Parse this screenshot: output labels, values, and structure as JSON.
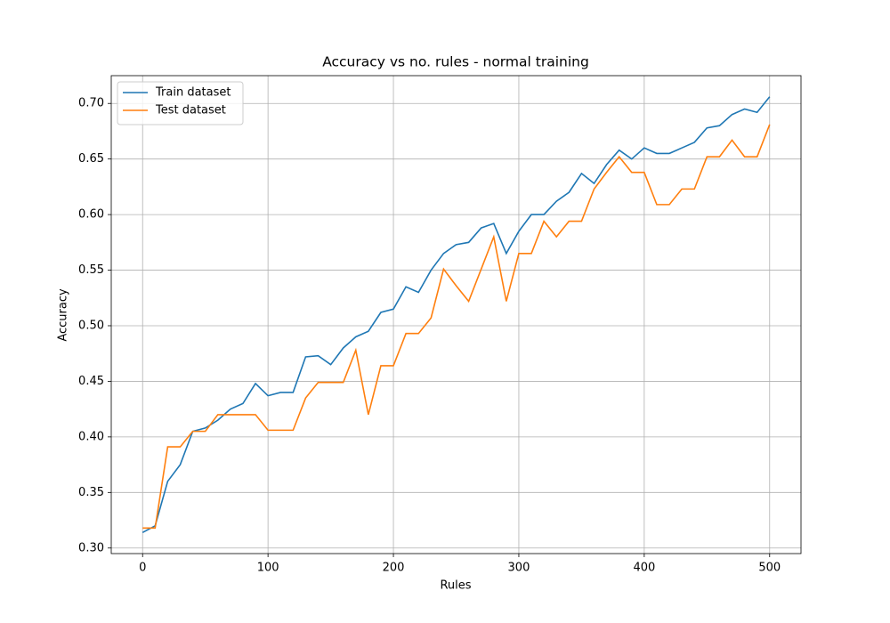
{
  "chart_data": {
    "type": "line",
    "title": "Accuracy vs no. rules - normal training",
    "xlabel": "Rules",
    "ylabel": "Accuracy",
    "x": [
      0,
      10,
      20,
      30,
      40,
      50,
      60,
      70,
      80,
      90,
      100,
      110,
      120,
      130,
      140,
      150,
      160,
      170,
      180,
      190,
      200,
      210,
      220,
      230,
      240,
      250,
      260,
      270,
      280,
      290,
      300,
      310,
      320,
      330,
      340,
      350,
      360,
      370,
      380,
      390,
      400,
      410,
      420,
      430,
      440,
      450,
      460,
      470,
      480,
      490,
      500
    ],
    "series": [
      {
        "name": "Train dataset",
        "color": "#1f77b4",
        "values": [
          0.314,
          0.32,
          0.36,
          0.375,
          0.405,
          0.408,
          0.415,
          0.425,
          0.43,
          0.448,
          0.437,
          0.44,
          0.44,
          0.472,
          0.473,
          0.465,
          0.48,
          0.49,
          0.495,
          0.512,
          0.515,
          0.535,
          0.53,
          0.55,
          0.565,
          0.573,
          0.575,
          0.588,
          0.592,
          0.565,
          0.585,
          0.6,
          0.6,
          0.612,
          0.62,
          0.637,
          0.628,
          0.645,
          0.658,
          0.65,
          0.66,
          0.655,
          0.655,
          0.66,
          0.665,
          0.678,
          0.68,
          0.69,
          0.695,
          0.692,
          0.706
        ]
      },
      {
        "name": "Test dataset",
        "color": "#ff7f0e",
        "values": [
          0.318,
          0.318,
          0.391,
          0.391,
          0.405,
          0.405,
          0.42,
          0.42,
          0.42,
          0.42,
          0.406,
          0.406,
          0.406,
          0.435,
          0.449,
          0.449,
          0.449,
          0.478,
          0.42,
          0.464,
          0.464,
          0.493,
          0.493,
          0.507,
          0.551,
          0.536,
          0.522,
          0.551,
          0.58,
          0.522,
          0.565,
          0.565,
          0.594,
          0.58,
          0.594,
          0.594,
          0.623,
          0.638,
          0.652,
          0.638,
          0.638,
          0.609,
          0.609,
          0.623,
          0.623,
          0.652,
          0.652,
          0.667,
          0.652,
          0.652,
          0.681
        ]
      }
    ],
    "xlim": [
      -25,
      525
    ],
    "ylim": [
      0.295,
      0.725
    ],
    "xticks": [
      0,
      100,
      200,
      300,
      400,
      500
    ],
    "yticks": [
      {
        "value": 0.3,
        "label": "0.30"
      },
      0.35,
      {
        "value": 0.4,
        "label": "0.40"
      },
      0.45,
      {
        "value": 0.5,
        "label": "0.50"
      },
      0.55,
      {
        "value": 0.6,
        "label": "0.60"
      },
      0.65,
      {
        "value": 0.7,
        "label": "0.70"
      }
    ],
    "grid": true,
    "legend": "upper-left"
  }
}
